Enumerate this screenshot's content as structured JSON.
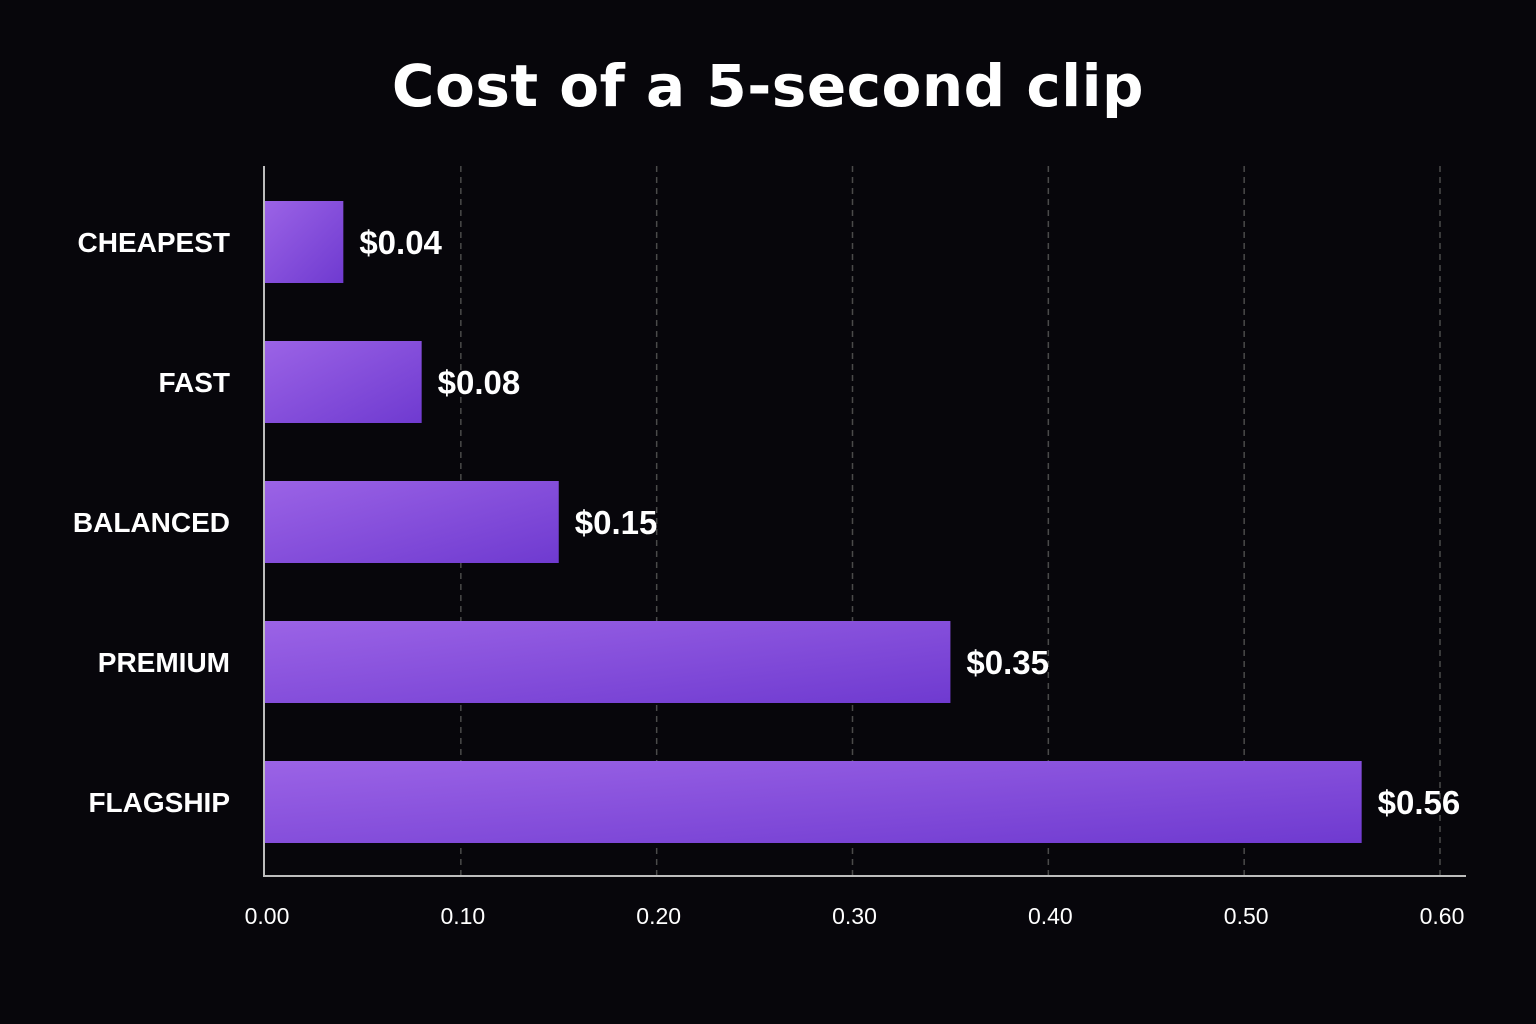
{
  "chart_data": {
    "type": "bar",
    "orientation": "horizontal",
    "title": "Cost of a 5-second clip",
    "xlabel": "",
    "ylabel": "",
    "categories": [
      "CHEAPEST",
      "FAST",
      "BALANCED",
      "PREMIUM",
      "FLAGSHIP"
    ],
    "values": [
      0.04,
      0.08,
      0.15,
      0.35,
      0.56
    ],
    "value_labels": [
      "$0.04",
      "$0.08",
      "$0.15",
      "$0.35",
      "$0.56"
    ],
    "xlim": [
      0,
      0.6
    ],
    "x_ticks": [
      0.0,
      0.1,
      0.2,
      0.3,
      0.4,
      0.5,
      0.6
    ],
    "x_tick_labels": [
      "0.00",
      "0.10",
      "0.20",
      "0.30",
      "0.40",
      "0.50",
      "0.60"
    ],
    "grid": "vertical-dashed",
    "legend": "none"
  },
  "colors": {
    "background": "#07060b",
    "bar_start": "#9b63e6",
    "bar_end": "#6f3ad0",
    "axis": "#bdbdbd",
    "grid": "#4a4a4a",
    "text": "#ffffff"
  }
}
